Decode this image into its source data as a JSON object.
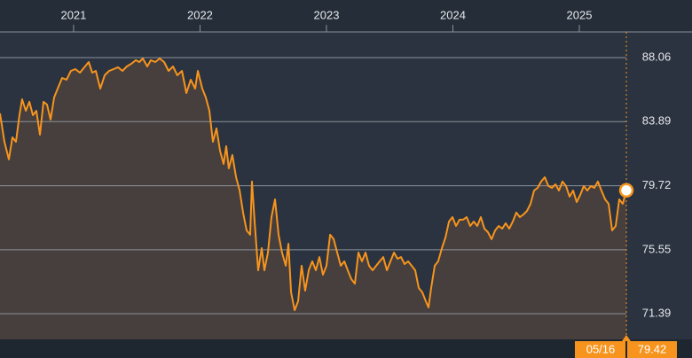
{
  "chart_data": {
    "type": "line",
    "x": [
      2020.418,
      2020.453,
      2020.488,
      2020.516,
      2020.544,
      2020.572,
      2020.593,
      2020.622,
      2020.65,
      2020.678,
      2020.706,
      2020.734,
      2020.762,
      2020.79,
      2020.818,
      2020.846,
      2020.874,
      2020.909,
      2020.944,
      2020.979,
      2021.014,
      2021.05,
      2021.085,
      2021.12,
      2021.148,
      2021.176,
      2021.211,
      2021.246,
      2021.281,
      2021.316,
      2021.351,
      2021.386,
      2021.421,
      2021.457,
      2021.492,
      2021.52,
      2021.548,
      2021.583,
      2021.611,
      2021.646,
      2021.681,
      2021.716,
      2021.751,
      2021.786,
      2021.821,
      2021.857,
      2021.892,
      2021.927,
      2021.962,
      2021.983,
      2022.018,
      2022.046,
      2022.074,
      2022.102,
      2022.13,
      2022.158,
      2022.186,
      2022.207,
      2022.228,
      2022.256,
      2022.285,
      2022.313,
      2022.341,
      2022.369,
      2022.397,
      2022.411,
      2022.432,
      2022.46,
      2022.488,
      2022.509,
      2022.537,
      2022.565,
      2022.593,
      2022.621,
      2022.649,
      2022.678,
      2022.699,
      2022.72,
      2022.748,
      2022.776,
      2022.804,
      2022.832,
      2022.86,
      2022.888,
      2022.916,
      2022.944,
      2022.972,
      2023.0,
      2023.029,
      2023.057,
      2023.085,
      2023.113,
      2023.141,
      2023.169,
      2023.197,
      2023.225,
      2023.253,
      2023.281,
      2023.309,
      2023.337,
      2023.365,
      2023.393,
      2023.421,
      2023.449,
      2023.478,
      2023.506,
      2023.534,
      2023.562,
      2023.59,
      2023.618,
      2023.646,
      2023.674,
      2023.702,
      2023.73,
      2023.758,
      2023.786,
      2023.807,
      2023.828,
      2023.856,
      2023.884,
      2023.913,
      2023.941,
      2023.969,
      2023.997,
      2024.025,
      2024.053,
      2024.081,
      2024.109,
      2024.137,
      2024.165,
      2024.193,
      2024.221,
      2024.249,
      2024.277,
      2024.306,
      2024.334,
      2024.362,
      2024.39,
      2024.418,
      2024.446,
      2024.474,
      2024.502,
      2024.53,
      2024.558,
      2024.586,
      2024.614,
      2024.642,
      2024.67,
      2024.698,
      2024.727,
      2024.755,
      2024.783,
      2024.811,
      2024.839,
      2024.867,
      2024.895,
      2024.923,
      2024.951,
      2024.979,
      2025.007,
      2025.035,
      2025.063,
      2025.091,
      2025.119,
      2025.147,
      2025.175,
      2025.204,
      2025.232,
      2025.26,
      2025.288,
      2025.316,
      2025.344,
      2025.372
    ],
    "series": [
      {
        "color": "#f7941d",
        "values": [
          84.43,
          82.58,
          81.43,
          82.87,
          82.58,
          84.31,
          85.35,
          84.6,
          85.18,
          84.31,
          84.6,
          83.04,
          85.18,
          85.0,
          84.02,
          85.46,
          86.04,
          86.73,
          86.62,
          87.19,
          87.31,
          87.08,
          87.43,
          87.77,
          87.08,
          87.19,
          86.04,
          86.91,
          87.19,
          87.31,
          87.43,
          87.19,
          87.48,
          87.66,
          87.89,
          87.77,
          88.0,
          87.48,
          87.89,
          87.77,
          88.0,
          87.77,
          87.19,
          87.48,
          86.91,
          87.19,
          85.75,
          86.62,
          86.04,
          87.19,
          86.04,
          85.46,
          84.6,
          82.58,
          83.45,
          82.0,
          81.14,
          82.29,
          80.85,
          81.72,
          80.27,
          79.41,
          77.97,
          76.81,
          76.53,
          79.99,
          77.39,
          74.22,
          75.66,
          74.22,
          75.37,
          77.68,
          78.83,
          76.53,
          75.37,
          74.51,
          75.95,
          72.78,
          71.62,
          72.2,
          74.51,
          72.89,
          74.22,
          74.8,
          74.22,
          75.08,
          73.93,
          74.51,
          76.53,
          76.24,
          75.37,
          74.51,
          74.8,
          74.22,
          73.64,
          73.35,
          75.37,
          74.8,
          75.37,
          74.51,
          74.22,
          74.51,
          74.8,
          75.08,
          74.22,
          74.8,
          75.37,
          74.97,
          75.08,
          74.62,
          74.8,
          74.51,
          74.22,
          73.07,
          72.78,
          72.2,
          71.8,
          73.07,
          74.51,
          74.8,
          75.66,
          76.35,
          77.39,
          77.68,
          77.1,
          77.51,
          77.51,
          77.68,
          77.1,
          77.39,
          77.1,
          77.68,
          76.93,
          76.7,
          76.24,
          76.81,
          77.1,
          76.93,
          77.28,
          76.93,
          77.39,
          77.97,
          77.68,
          77.85,
          78.08,
          78.54,
          79.41,
          79.58,
          79.99,
          80.27,
          79.7,
          79.58,
          79.81,
          79.41,
          79.99,
          79.7,
          79.01,
          79.41,
          78.66,
          79.12,
          79.7,
          79.41,
          79.7,
          79.58,
          79.99,
          79.41,
          78.83,
          78.54,
          76.81,
          77.1,
          78.83,
          78.54,
          79.42
        ]
      }
    ],
    "last_point_label": "05/16",
    "xlim": [
      2020.418,
      2025.372
    ],
    "xticks": [
      2021,
      2022,
      2023,
      2024,
      2025
    ],
    "ylim": [
      69.72,
      89.73
    ],
    "yticks": [
      71.39,
      75.55,
      79.72,
      83.89,
      88.06
    ],
    "grid": true
  }
}
